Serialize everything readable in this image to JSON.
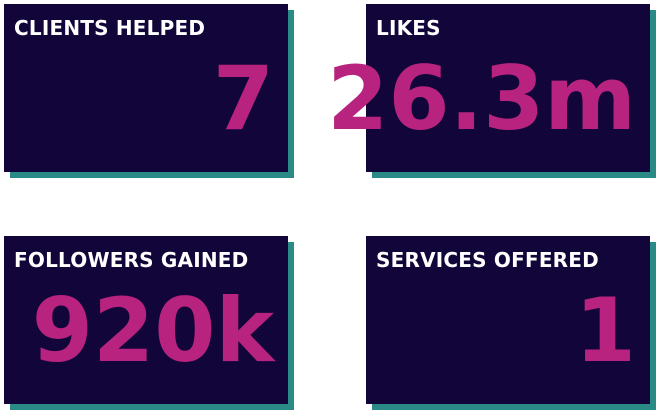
{
  "cards": [
    {
      "label": "CLIENTS HELPED",
      "value": "7"
    },
    {
      "label": "LIKES",
      "value": "26.3m"
    },
    {
      "label": "FOLLOWERS GAINED",
      "value": "920k"
    },
    {
      "label": "SERVICES OFFERED",
      "value": "1"
    }
  ]
}
